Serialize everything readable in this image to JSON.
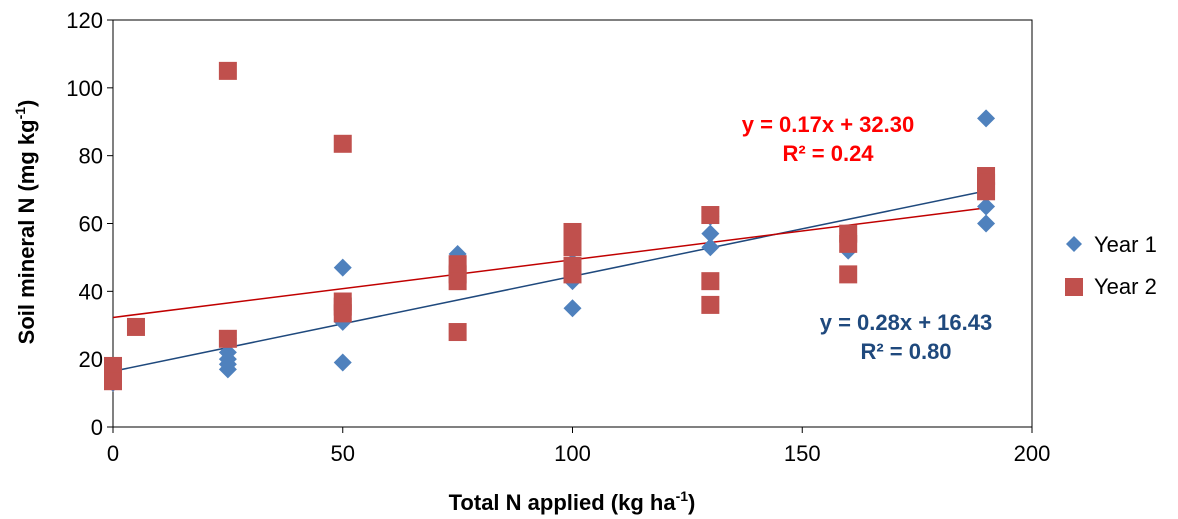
{
  "chart_data": {
    "type": "scatter",
    "xlabel": {
      "text": "Total N applied (kg ha",
      "sup": "-1",
      "tail": ")"
    },
    "ylabel": {
      "text": "Soil mineral N (mg kg",
      "sup": "-1",
      "tail": ")"
    },
    "xlim": [
      0,
      200
    ],
    "ylim": [
      0,
      120
    ],
    "xticks": [
      "0",
      "50",
      "100",
      "150",
      "200"
    ],
    "yticks": [
      "0",
      "20",
      "40",
      "60",
      "80",
      "100",
      "120"
    ],
    "grid": false,
    "legend_position": "right",
    "series": [
      {
        "name": "Year 1",
        "marker": "diamond",
        "color": "#4F81BD",
        "trend_color": "#1F497D",
        "trend": {
          "slope": 0.28,
          "intercept": 16.43,
          "x_range": [
            0,
            190
          ]
        },
        "equation": "y = 0.28x + 16.43",
        "r2": "R² = 0.80",
        "points": [
          [
            0,
            16
          ],
          [
            0,
            14
          ],
          [
            0,
            13
          ],
          [
            25,
            20
          ],
          [
            25,
            18.5
          ],
          [
            25,
            17
          ],
          [
            25,
            22
          ],
          [
            25,
            26
          ],
          [
            50,
            47
          ],
          [
            50,
            31
          ],
          [
            50,
            19
          ],
          [
            50,
            36
          ],
          [
            75,
            51
          ],
          [
            75,
            48
          ],
          [
            75,
            43
          ],
          [
            75,
            45
          ],
          [
            100,
            43
          ],
          [
            100,
            35
          ],
          [
            100,
            52
          ],
          [
            100,
            55
          ],
          [
            130,
            57
          ],
          [
            130,
            53
          ],
          [
            130,
            62
          ],
          [
            160,
            52
          ],
          [
            160,
            55
          ],
          [
            160,
            57
          ],
          [
            190,
            91
          ],
          [
            190,
            65
          ],
          [
            190,
            60
          ],
          [
            190,
            72
          ]
        ]
      },
      {
        "name": "Year 2",
        "marker": "square",
        "color": "#C0504D",
        "trend_color": "#C00000",
        "trend": {
          "slope": 0.17,
          "intercept": 32.3,
          "x_range": [
            0,
            190
          ]
        },
        "equation": "y = 0.17x + 32.30",
        "r2": "R² = 0.24",
        "points": [
          [
            0,
            18
          ],
          [
            0,
            15
          ],
          [
            0,
            13.5
          ],
          [
            5,
            29.5
          ],
          [
            25,
            105
          ],
          [
            25,
            26
          ],
          [
            50,
            83.5
          ],
          [
            50,
            37
          ],
          [
            50,
            35.5
          ],
          [
            50,
            33.5
          ],
          [
            75,
            48
          ],
          [
            75,
            45
          ],
          [
            75,
            43
          ],
          [
            75,
            28
          ],
          [
            100,
            57.5
          ],
          [
            100,
            53
          ],
          [
            100,
            47.5
          ],
          [
            100,
            45
          ],
          [
            130,
            62.5
          ],
          [
            130,
            43
          ],
          [
            130,
            36
          ],
          [
            160,
            57
          ],
          [
            160,
            54
          ],
          [
            160,
            45
          ],
          [
            190,
            74
          ],
          [
            190,
            72
          ],
          [
            190,
            69.5
          ]
        ]
      }
    ]
  }
}
